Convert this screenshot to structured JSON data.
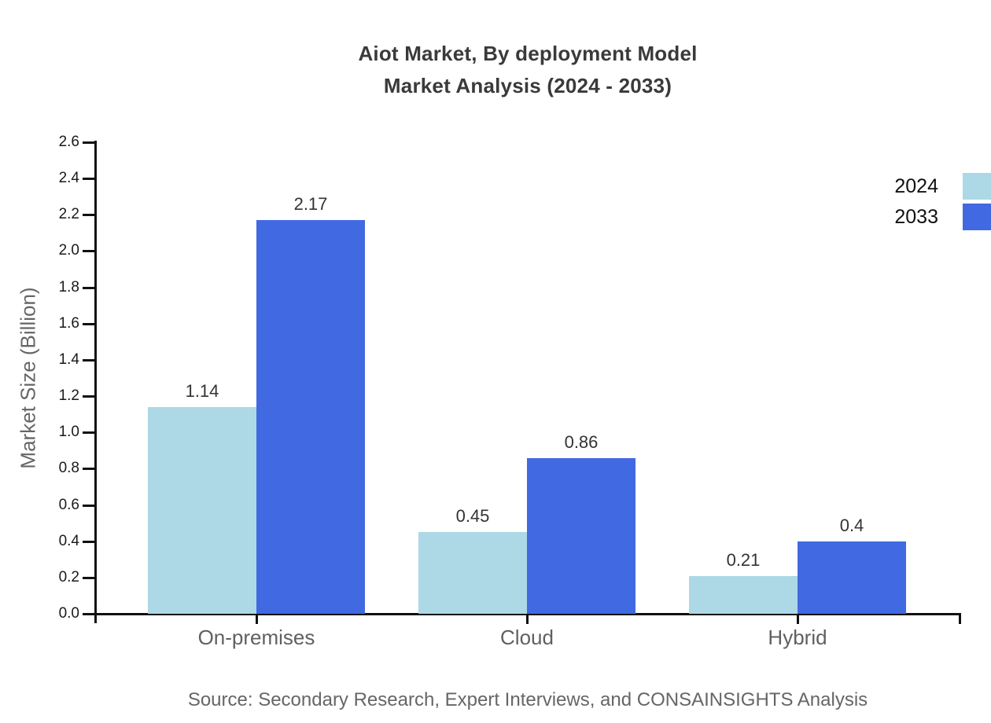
{
  "title": {
    "line1": "Aiot Market, By deployment Model",
    "line2": "Market Analysis (2024 - 2033)"
  },
  "source": "Source: Secondary Research, Expert Interviews, and CONSAINSIGHTS Analysis",
  "colors": {
    "series_2024": "#ADD8E6",
    "series_2033": "#4169E1",
    "axis": "#111111",
    "title_text": "#3a3a3a",
    "muted_text": "#666666",
    "tick_text": "#1a1a1a",
    "value_label_text": "#333333",
    "background": "#ffffff"
  },
  "chart_data": {
    "type": "bar",
    "categories": [
      "On-premises",
      "Cloud",
      "Hybrid"
    ],
    "series": [
      {
        "name": "2024",
        "color": "#ADD8E6",
        "values": [
          1.14,
          0.45,
          0.21
        ]
      },
      {
        "name": "2033",
        "color": "#4169E1",
        "values": [
          2.17,
          0.86,
          0.4
        ]
      }
    ],
    "value_labels": [
      [
        "1.14",
        "0.45",
        "0.21"
      ],
      [
        "2.17",
        "0.86",
        "0.4"
      ]
    ],
    "title": "Aiot Market, By deployment Model Market Analysis (2024 - 2033)",
    "xlabel": "",
    "ylabel": "Market Size (Billion)",
    "ylim": [
      0.0,
      2.6
    ],
    "ytick_step": 0.2,
    "grid": false,
    "legend_position": "top-right"
  }
}
